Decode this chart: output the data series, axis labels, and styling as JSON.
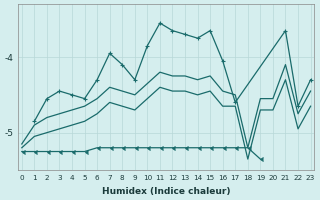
{
  "x": [
    0,
    1,
    2,
    3,
    4,
    5,
    6,
    7,
    8,
    9,
    10,
    11,
    12,
    13,
    14,
    15,
    16,
    17,
    18,
    19,
    20,
    21,
    22,
    23
  ],
  "top_line_x": [
    1,
    2,
    3,
    4,
    5,
    6,
    7,
    8,
    9,
    10,
    11,
    12,
    13,
    14,
    15,
    16,
    17,
    21,
    22,
    23
  ],
  "top_line_y": [
    -4.85,
    -4.55,
    -4.45,
    -4.5,
    -4.55,
    -4.3,
    -3.95,
    -4.1,
    -4.3,
    -3.85,
    -3.55,
    -3.65,
    -3.7,
    -3.75,
    -3.65,
    -4.05,
    -4.6,
    -3.65,
    -4.65,
    -4.3
  ],
  "diag_upper_x": [
    0,
    1,
    2,
    3,
    4,
    5,
    6,
    7,
    8,
    9,
    10,
    11,
    12,
    13,
    14,
    15,
    16,
    17,
    18,
    19,
    20,
    21,
    22,
    23
  ],
  "diag_upper_y": [
    -5.15,
    -4.9,
    -4.8,
    -4.75,
    -4.7,
    -4.65,
    -4.55,
    -4.4,
    -4.45,
    -4.5,
    -4.35,
    -4.2,
    -4.25,
    -4.25,
    -4.3,
    -4.25,
    -4.45,
    -4.5,
    -5.2,
    -4.55,
    -4.55,
    -4.1,
    -4.75,
    -4.45
  ],
  "diag_lower_x": [
    0,
    1,
    2,
    3,
    4,
    5,
    6,
    7,
    8,
    9,
    10,
    11,
    12,
    13,
    14,
    15,
    16,
    17,
    18,
    19,
    20,
    21,
    22,
    23
  ],
  "diag_lower_y": [
    -5.2,
    -5.05,
    -5.0,
    -4.95,
    -4.9,
    -4.85,
    -4.75,
    -4.6,
    -4.65,
    -4.7,
    -4.55,
    -4.4,
    -4.45,
    -4.45,
    -4.5,
    -4.45,
    -4.65,
    -4.65,
    -5.35,
    -4.7,
    -4.7,
    -4.3,
    -4.95,
    -4.65
  ],
  "flat_line_x": [
    0,
    1,
    2,
    3,
    4,
    5,
    6,
    7,
    8,
    9,
    10,
    11,
    12,
    13,
    14,
    15,
    16,
    17,
    18,
    19
  ],
  "flat_line_y": [
    -5.25,
    -5.25,
    -5.25,
    -5.25,
    -5.25,
    -5.25,
    -5.2,
    -5.2,
    -5.2,
    -5.2,
    -5.2,
    -5.2,
    -5.2,
    -5.2,
    -5.2,
    -5.2,
    -5.2,
    -5.2,
    -5.2,
    -5.35
  ],
  "bg_color": "#d5eeee",
  "grid_color": "#b8d8d8",
  "line_color": "#1a6b6b",
  "xlabel": "Humidex (Indice chaleur)",
  "yticks": [
    -5,
    -4
  ],
  "xticks": [
    0,
    1,
    2,
    3,
    4,
    5,
    6,
    7,
    8,
    9,
    10,
    11,
    12,
    13,
    14,
    15,
    16,
    17,
    18,
    19,
    20,
    21,
    22,
    23
  ],
  "ylim": [
    -5.5,
    -3.3
  ],
  "xlim": [
    -0.3,
    23.3
  ]
}
